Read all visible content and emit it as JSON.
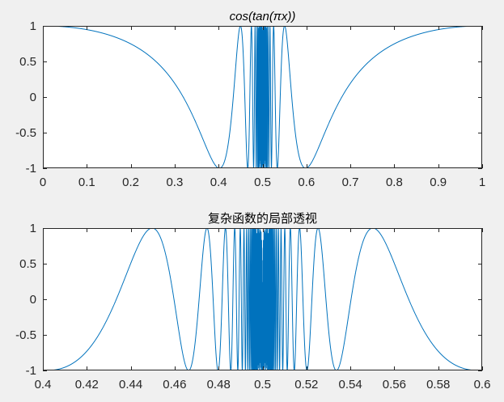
{
  "chart_data": [
    {
      "type": "line",
      "title": "cos(tan(πx))",
      "title_style": "italic",
      "function": "cos(tan(pi*x))",
      "xlim": [
        0,
        1
      ],
      "ylim": [
        -1,
        1
      ],
      "xticks": [
        0,
        0.1,
        0.2,
        0.3,
        0.4,
        0.5,
        0.6,
        0.7,
        0.8,
        0.9,
        1
      ],
      "xtick_labels": [
        "0",
        "0.1",
        "0.2",
        "0.3",
        "0.4",
        "0.5",
        "0.6",
        "0.7",
        "0.8",
        "0.9",
        "1"
      ],
      "yticks": [
        -1,
        -0.5,
        0,
        0.5,
        1
      ],
      "ytick_labels": [
        "-1",
        "-0.5",
        "0",
        "0.5",
        "1"
      ],
      "grid": false,
      "series": [
        {
          "color": "#0072bd"
        }
      ]
    },
    {
      "type": "line",
      "title": "复杂函数的局部透视",
      "title_style": "normal",
      "function": "cos(tan(pi*x))",
      "xlim": [
        0.4,
        0.6
      ],
      "ylim": [
        -1,
        1
      ],
      "xticks": [
        0.4,
        0.42,
        0.44,
        0.46,
        0.48,
        0.5,
        0.52,
        0.54,
        0.56,
        0.58,
        0.6
      ],
      "xtick_labels": [
        "0.4",
        "0.42",
        "0.44",
        "0.46",
        "0.48",
        "0.5",
        "0.52",
        "0.54",
        "0.56",
        "0.58",
        "0.6"
      ],
      "yticks": [
        -1,
        -0.5,
        0,
        0.5,
        1
      ],
      "ytick_labels": [
        "-1",
        "-0.5",
        "0",
        "0.5",
        "1"
      ],
      "grid": false,
      "series": [
        {
          "color": "#0072bd"
        }
      ]
    }
  ]
}
